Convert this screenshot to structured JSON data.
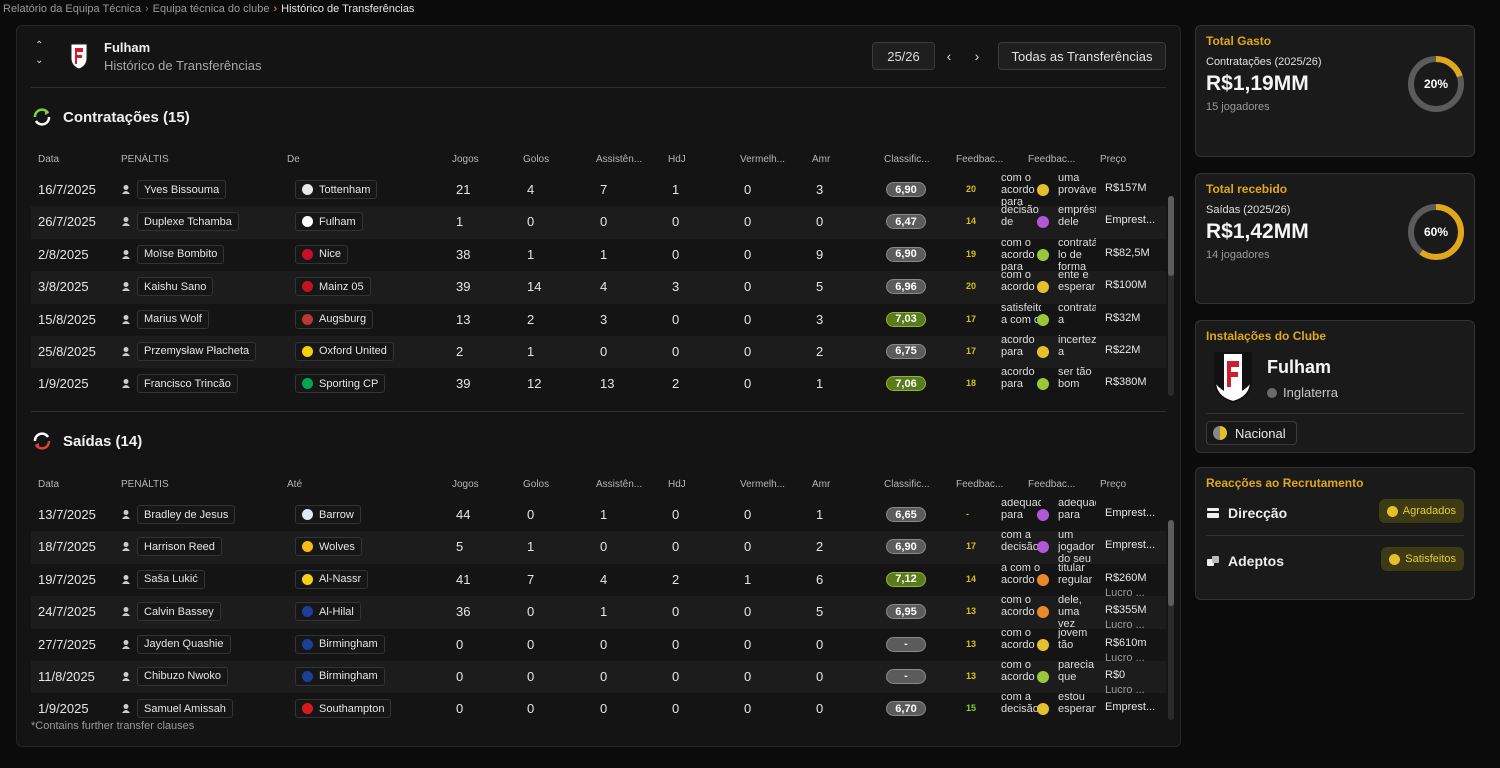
{
  "breadcrumb": {
    "items": [
      "Relatório da Equipa Técnica",
      "Equipa técnica do clube",
      "Histórico de Transferências"
    ]
  },
  "header": {
    "club": "Fulham",
    "subtitle": "Histórico de Transferências",
    "season": "25/26",
    "all_transfers": "Todas as Transferências"
  },
  "signings": {
    "title": "Contratações (15)",
    "columns": [
      "Data",
      "PENÁLTIS",
      "De",
      "Jogos",
      "Golos",
      "Assistên...",
      "HdJ",
      "Vermelh...",
      "Amr",
      "Classific...",
      "Feedbac...",
      "Feedbac...",
      "Preço"
    ],
    "rows": [
      {
        "date": "16/7/2025",
        "player": "Yves Bissouma",
        "club": "Tottenham",
        "badge": "#e8e8e8",
        "jogos": "21",
        "golos": "4",
        "assist": "7",
        "hdj": "1",
        "verm": "0",
        "amr": "3",
        "rating": "6,90",
        "rating_color": "grey",
        "fb_num": "20",
        "fb_num_color": "yellow",
        "fb_text": "com o acordo para",
        "emoji": "y",
        "fb_text2": "uma provável",
        "price": "R$157M",
        "price_sub": ""
      },
      {
        "date": "26/7/2025",
        "player": "Duplexe Tchamba",
        "club": "Fulham",
        "badge": "#ffffff",
        "jogos": "1",
        "golos": "0",
        "assist": "0",
        "hdj": "0",
        "verm": "0",
        "amr": "0",
        "rating": "6,47",
        "rating_color": "grey",
        "fb_num": "14",
        "fb_num_color": "yellow",
        "fb_text": "decisão de",
        "emoji": "p",
        "fb_text2": "empréstimo dele",
        "price": "Emprest...",
        "price_sub": ""
      },
      {
        "date": "2/8/2025",
        "player": "Moïse Bombito",
        "club": "Nice",
        "badge": "#c8102e",
        "jogos": "38",
        "golos": "1",
        "assist": "1",
        "hdj": "0",
        "verm": "0",
        "amr": "9",
        "rating": "6,90",
        "rating_color": "grey",
        "fb_num": "19",
        "fb_num_color": "yellow",
        "fb_text": "com o acordo para",
        "emoji": "g",
        "fb_text2": "contratá-lo de forma",
        "price": "R$82,5M",
        "price_sub": ""
      },
      {
        "date": "3/8/2025",
        "player": "Kaishu Sano",
        "club": "Mainz 05",
        "badge": "#c3141e",
        "jogos": "39",
        "golos": "14",
        "assist": "4",
        "hdj": "3",
        "verm": "0",
        "amr": "5",
        "rating": "6,96",
        "rating_color": "grey",
        "fb_num": "20",
        "fb_num_color": "yellow",
        "fb_text": "com o acordo",
        "emoji": "y",
        "fb_text2": "ente e esperar",
        "price": "R$100M",
        "price_sub": ""
      },
      {
        "date": "15/8/2025",
        "player": "Marius Wolf",
        "club": "Augsburg",
        "badge": "#ba3733",
        "jogos": "13",
        "golos": "2",
        "assist": "3",
        "hdj": "0",
        "verm": "0",
        "amr": "3",
        "rating": "7,03",
        "rating_color": "green",
        "fb_num": "17",
        "fb_num_color": "yellow",
        "fb_text": "satisfeito a com o",
        "emoji": "g",
        "fb_text2": "contratado a",
        "price": "R$32M",
        "price_sub": ""
      },
      {
        "date": "25/8/2025",
        "player": "Przemysław Płacheta",
        "club": "Oxford United",
        "badge": "#f5d100",
        "jogos": "2",
        "golos": "1",
        "assist": "0",
        "hdj": "0",
        "verm": "0",
        "amr": "2",
        "rating": "6,75",
        "rating_color": "grey",
        "fb_num": "17",
        "fb_num_color": "yellow",
        "fb_text": "acordo para",
        "emoji": "y",
        "fb_text2": "incerteza a",
        "price": "R$22M",
        "price_sub": ""
      },
      {
        "date": "1/9/2025",
        "player": "Francisco Trincão",
        "club": "Sporting CP",
        "badge": "#00a651",
        "jogos": "39",
        "golos": "12",
        "assist": "13",
        "hdj": "2",
        "verm": "0",
        "amr": "1",
        "rating": "7,06",
        "rating_color": "green",
        "fb_num": "18",
        "fb_num_color": "yellow",
        "fb_text": "acordo para",
        "emoji": "g",
        "fb_text2": "ser tão bom",
        "price": "R$380M",
        "price_sub": ""
      }
    ]
  },
  "departures": {
    "title": "Saídas (14)",
    "columns": [
      "Data",
      "PENÁLTIS",
      "Até",
      "Jogos",
      "Golos",
      "Assistên...",
      "HdJ",
      "Vermelh...",
      "Amr",
      "Classific...",
      "Feedbac...",
      "Feedbac...",
      "Preço"
    ],
    "rows": [
      {
        "date": "13/7/2025",
        "player": "Bradley de Jesus",
        "club": "Barrow",
        "badge": "#dfe8f5",
        "jogos": "44",
        "golos": "0",
        "assist": "1",
        "hdj": "0",
        "verm": "0",
        "amr": "1",
        "rating": "6,65",
        "rating_color": "grey",
        "fb_num": "-",
        "fb_num_color": "yellow",
        "fb_text": "adequado para",
        "emoji": "p",
        "fb_text2": "adequado para",
        "price": "Emprest...",
        "price_sub": ""
      },
      {
        "date": "18/7/2025",
        "player": "Harrison Reed",
        "club": "Wolves",
        "badge": "#fdb913",
        "jogos": "5",
        "golos": "1",
        "assist": "0",
        "hdj": "0",
        "verm": "0",
        "amr": "2",
        "rating": "6,90",
        "rating_color": "grey",
        "fb_num": "17",
        "fb_num_color": "yellow",
        "fb_text": "com a decisão",
        "emoji": "p",
        "fb_text2": "um jogador do seu",
        "price": "Emprest...",
        "price_sub": ""
      },
      {
        "date": "19/7/2025",
        "player": "Saša Lukić",
        "club": "Al-Nassr",
        "badge": "#f7d117",
        "jogos": "41",
        "golos": "7",
        "assist": "4",
        "hdj": "2",
        "verm": "1",
        "amr": "6",
        "rating": "7,12",
        "rating_color": "green",
        "fb_num": "14",
        "fb_num_color": "yellow",
        "fb_text": "a com o acordo",
        "emoji": "o",
        "fb_text2": "titular regular",
        "price": "R$260M",
        "price_sub": "Lucro ..."
      },
      {
        "date": "24/7/2025",
        "player": "Calvin Bassey",
        "club": "Al-Hilal",
        "badge": "#1e3e9c",
        "jogos": "36",
        "golos": "0",
        "assist": "1",
        "hdj": "0",
        "verm": "0",
        "amr": "5",
        "rating": "6,95",
        "rating_color": "grey",
        "fb_num": "13",
        "fb_num_color": "yellow",
        "fb_text": "com o acordo",
        "emoji": "o",
        "fb_text2": "dele, uma vez",
        "price": "R$355M",
        "price_sub": "Lucro ..."
      },
      {
        "date": "27/7/2025",
        "player": "Jayden Quashie",
        "club": "Birmingham",
        "badge": "#1b3f97",
        "jogos": "0",
        "golos": "0",
        "assist": "0",
        "hdj": "0",
        "verm": "0",
        "amr": "0",
        "rating": "-",
        "rating_color": "grey",
        "fb_num": "13",
        "fb_num_color": "yellow",
        "fb_text": "com o acordo",
        "emoji": "y",
        "fb_text2": "jovem tão",
        "price": "R$610m",
        "price_sub": "Lucro ..."
      },
      {
        "date": "11/8/2025",
        "player": "Chibuzo Nwoko",
        "club": "Birmingham",
        "badge": "#1b3f97",
        "jogos": "0",
        "golos": "0",
        "assist": "0",
        "hdj": "0",
        "verm": "0",
        "amr": "0",
        "rating": "-",
        "rating_color": "grey",
        "fb_num": "13",
        "fb_num_color": "yellow",
        "fb_text": "com o acordo",
        "emoji": "g",
        "fb_text2": "parecia que",
        "price": "R$0",
        "price_sub": "Lucro ..."
      },
      {
        "date": "1/9/2025",
        "player": "Samuel Amissah",
        "club": "Southampton",
        "badge": "#d71920",
        "jogos": "0",
        "golos": "0",
        "assist": "0",
        "hdj": "0",
        "verm": "0",
        "amr": "0",
        "rating": "6,70",
        "rating_color": "grey",
        "fb_num": "15",
        "fb_num_color": "green",
        "fb_text": "com a decisão",
        "emoji": "y",
        "fb_text2": "estou esperando",
        "price": "Emprest...",
        "price_sub": ""
      }
    ]
  },
  "footnote": "*Contains further transfer clauses",
  "spent": {
    "title": "Total Gasto",
    "label": "Contratações (2025/26)",
    "value": "R$1,19MM",
    "players": "15 jogadores",
    "percent": 20,
    "percent_label": "20%"
  },
  "received": {
    "title": "Total recebido",
    "label": "Saídas (2025/26)",
    "value": "R$1,42MM",
    "players": "14 jogadores",
    "percent": 60,
    "percent_label": "60%"
  },
  "facilities": {
    "title": "Instalações do Clube",
    "club": "Fulham",
    "country": "Inglaterra",
    "badge": "Nacional"
  },
  "reactions": {
    "title": "Reacções ao Recrutamento",
    "items": [
      {
        "label": "Direcção",
        "status": "Agradados"
      },
      {
        "label": "Adeptos",
        "status": "Satisfeitos"
      }
    ]
  },
  "colors": {
    "accent": "#e0a71a",
    "positive": "#7fd13a",
    "donut_track": "#5b5b5b"
  }
}
